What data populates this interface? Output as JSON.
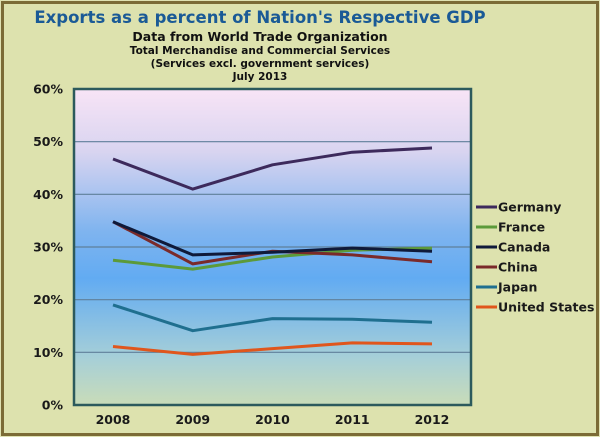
{
  "chart_data": {
    "type": "line",
    "title": "Exports as a percent of Nation's Respective GDP",
    "subtitles": [
      "Data from World Trade Organization",
      "Total Merchandise and Commercial Services",
      "(Services excl. government services)",
      "July 2013"
    ],
    "xlabel": "",
    "ylabel": "",
    "x": [
      "2008",
      "2009",
      "2010",
      "2011",
      "2012"
    ],
    "ylim": [
      0,
      60
    ],
    "yticks": [
      0,
      10,
      20,
      30,
      40,
      50,
      60
    ],
    "ytick_labels": [
      "0%",
      "10%",
      "20%",
      "30%",
      "40%",
      "50%",
      "60%"
    ],
    "grid": true,
    "legend_position": "right",
    "series": [
      {
        "name": "Germany",
        "color": "#3d2a5c",
        "values": [
          46.7,
          41.0,
          45.6,
          48.0,
          48.8
        ]
      },
      {
        "name": "France",
        "color": "#5c9a3a",
        "values": [
          27.5,
          25.8,
          28.1,
          29.4,
          29.8
        ]
      },
      {
        "name": "Canada",
        "color": "#0f1a3a",
        "values": [
          34.8,
          28.5,
          29.0,
          29.8,
          29.2
        ]
      },
      {
        "name": "China",
        "color": "#7a2a2a",
        "values": [
          34.8,
          26.8,
          29.2,
          28.5,
          27.2
        ]
      },
      {
        "name": "Japan",
        "color": "#1f6f8f",
        "values": [
          19.0,
          14.1,
          16.4,
          16.3,
          15.7
        ]
      },
      {
        "name": "United States",
        "color": "#e0561c",
        "values": [
          11.1,
          9.6,
          10.7,
          11.8,
          11.6
        ]
      }
    ]
  }
}
